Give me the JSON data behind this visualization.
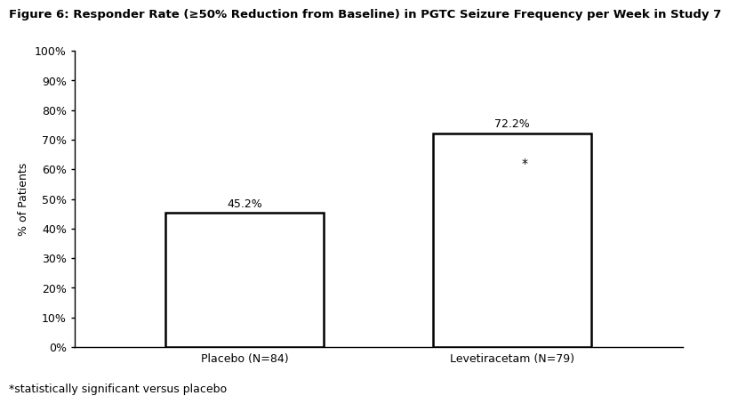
{
  "title": "Figure 6: Responder Rate (≥50% Reduction from Baseline) in PGTC Seizure Frequency per Week in Study 7",
  "categories": [
    "Placebo (N=84)",
    "Levetiracetam (N=79)"
  ],
  "values": [
    45.2,
    72.2
  ],
  "bar_labels": [
    "45.2%",
    "72.2%"
  ],
  "star_label": "*",
  "star_note": "*statistically significant versus placebo",
  "ylabel": "% of Patients",
  "ylim": [
    0,
    100
  ],
  "yticks": [
    0,
    10,
    20,
    30,
    40,
    50,
    60,
    70,
    80,
    90,
    100
  ],
  "ytick_labels": [
    "0%",
    "10%",
    "20%",
    "30%",
    "40%",
    "50%",
    "60%",
    "70%",
    "80%",
    "90%",
    "100%"
  ],
  "bar_color": "#ffffff",
  "bar_edgecolor": "#000000",
  "bar_linewidth": 1.8,
  "title_fontsize": 9.5,
  "label_fontsize": 9,
  "tick_fontsize": 9,
  "note_fontsize": 9,
  "bar_label_fontsize": 9,
  "star_fontsize": 10,
  "background_color": "#ffffff",
  "x_positions": [
    0.28,
    0.72
  ],
  "bar_width": 0.26
}
